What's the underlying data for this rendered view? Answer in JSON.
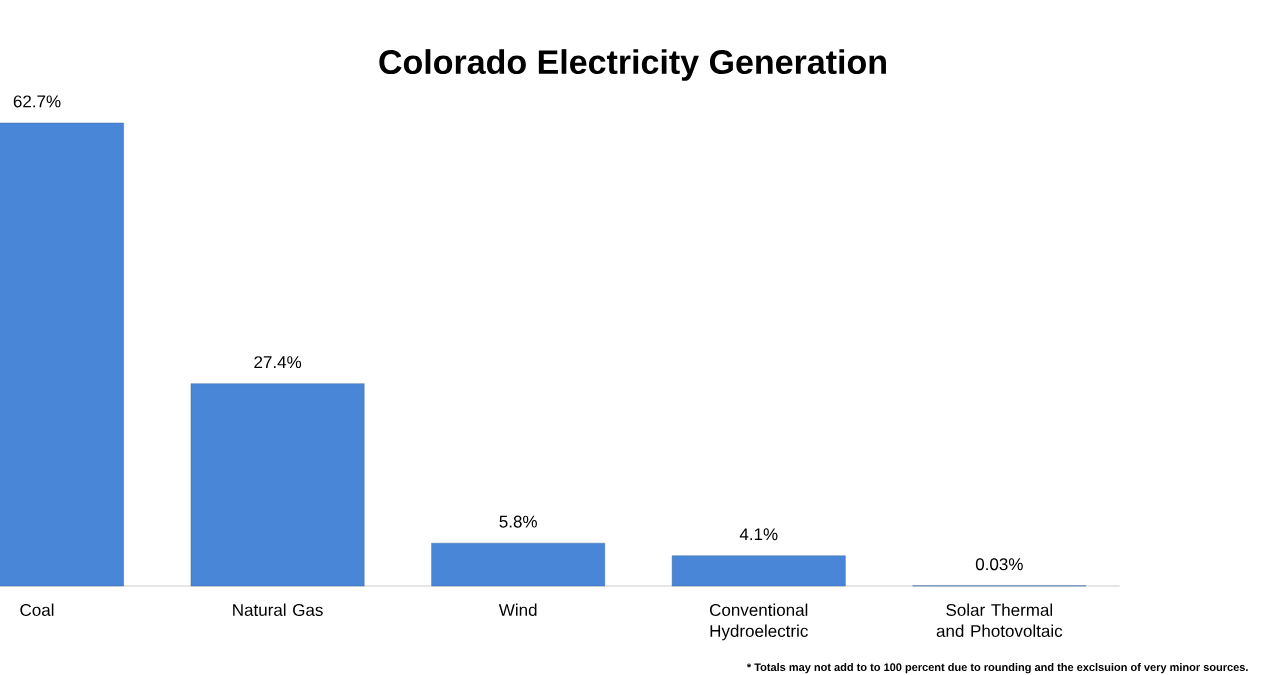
{
  "chart_data": {
    "type": "bar",
    "title": "Colorado Electricity Generation",
    "categories": [
      "Coal",
      "Natural Gas",
      "Wind",
      "Conventional Hydroelectric",
      "Solar Thermal and Photovoltaic"
    ],
    "values": [
      62.7,
      27.4,
      5.8,
      4.1,
      0.03
    ],
    "value_labels": [
      "62.7%",
      "27.4%",
      "5.8%",
      "4.1%",
      "0.03%"
    ],
    "color": "#4a86d8",
    "annotations": [
      "* Totals may not add to to 100 percent due to rounding and the exclsuion of very minor sources."
    ]
  }
}
